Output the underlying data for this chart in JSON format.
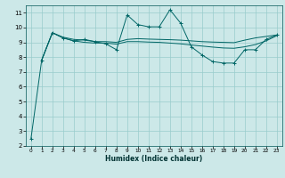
{
  "xlabel": "Humidex (Indice chaleur)",
  "bg_color": "#cce8e8",
  "grid_color": "#99cccc",
  "line_color": "#006666",
  "xlim": [
    -0.5,
    23.5
  ],
  "ylim": [
    2,
    11.5
  ],
  "xticks": [
    0,
    1,
    2,
    3,
    4,
    5,
    6,
    7,
    8,
    9,
    10,
    11,
    12,
    13,
    14,
    15,
    16,
    17,
    18,
    19,
    20,
    21,
    22,
    23
  ],
  "yticks": [
    2,
    3,
    4,
    5,
    6,
    7,
    8,
    9,
    10,
    11
  ],
  "series": [
    {
      "x": [
        0,
        1,
        2,
        3,
        4,
        5,
        6,
        7,
        8,
        9,
        10,
        11,
        12,
        13,
        14,
        15,
        16,
        17,
        18,
        19,
        20,
        21,
        22,
        23
      ],
      "y": [
        2.5,
        7.8,
        9.65,
        9.3,
        9.1,
        9.2,
        9.05,
        8.9,
        8.5,
        10.85,
        10.2,
        10.05,
        10.05,
        11.2,
        10.3,
        8.7,
        8.15,
        7.7,
        7.6,
        7.6,
        8.5,
        8.5,
        9.2,
        9.5
      ],
      "marker": true
    },
    {
      "x": [
        1,
        2,
        3,
        4,
        5,
        6,
        7,
        8,
        9,
        10,
        11,
        12,
        13,
        14,
        15,
        16,
        17,
        18,
        19,
        20,
        21,
        22,
        23
      ],
      "y": [
        7.8,
        9.65,
        9.35,
        9.2,
        9.15,
        9.05,
        9.05,
        9.0,
        9.2,
        9.25,
        9.22,
        9.2,
        9.18,
        9.15,
        9.1,
        9.05,
        9.02,
        9.0,
        8.98,
        9.15,
        9.3,
        9.4,
        9.5
      ],
      "marker": false
    },
    {
      "x": [
        1,
        2,
        3,
        4,
        5,
        6,
        7,
        8,
        9,
        10,
        11,
        12,
        13,
        14,
        15,
        16,
        17,
        18,
        19,
        20,
        21,
        22,
        23
      ],
      "y": [
        7.8,
        9.65,
        9.3,
        9.1,
        9.0,
        8.95,
        8.95,
        8.88,
        9.05,
        9.05,
        9.02,
        9.0,
        8.95,
        8.9,
        8.82,
        8.75,
        8.68,
        8.62,
        8.6,
        8.7,
        8.85,
        9.1,
        9.45
      ],
      "marker": false
    }
  ]
}
